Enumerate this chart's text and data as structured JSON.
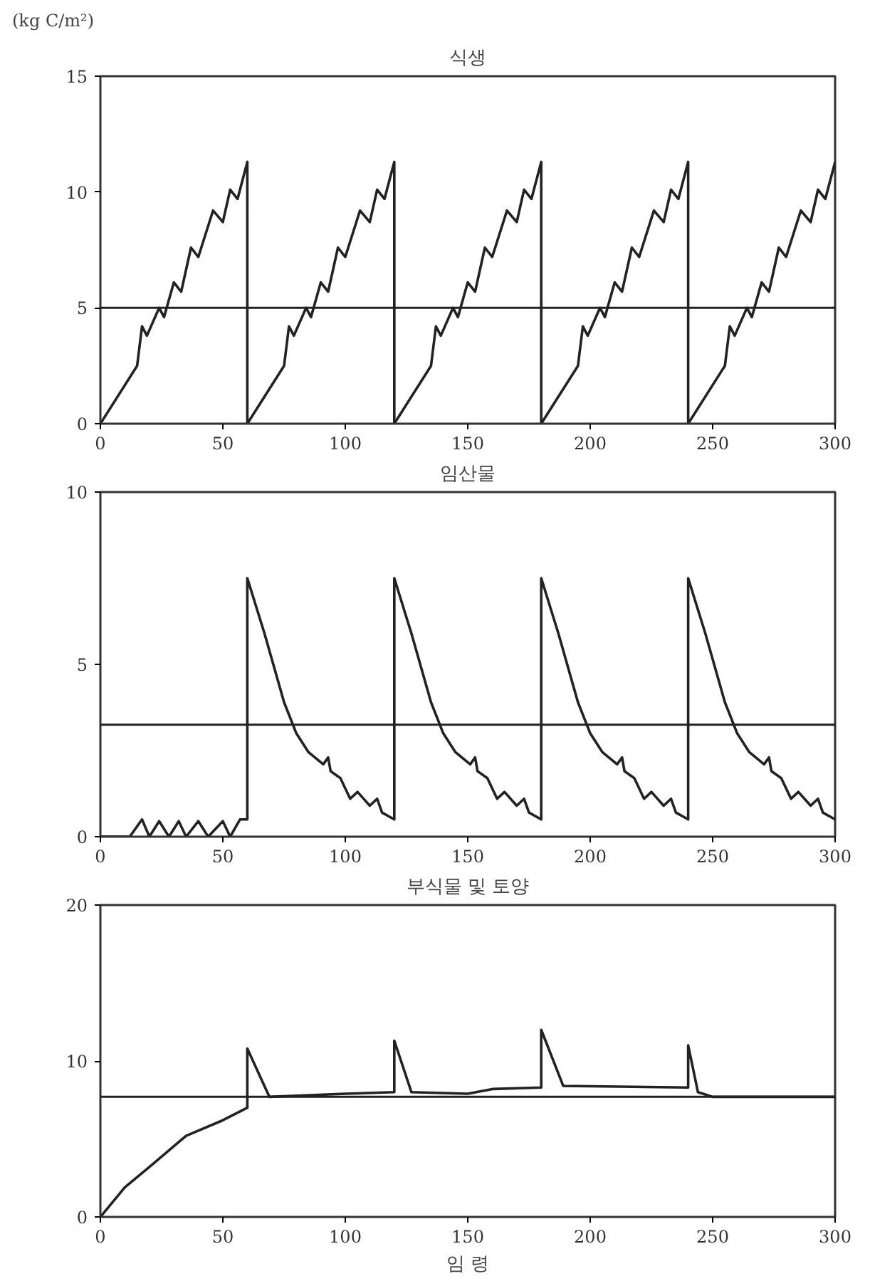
{
  "chart_data": [
    {
      "type": "line",
      "title": "식생",
      "ylabel": "(kg C/m²)",
      "xlim": [
        0,
        300
      ],
      "xticks": [
        0,
        50,
        100,
        150,
        200,
        250,
        300
      ],
      "ylim": [
        0,
        15
      ],
      "yticks": [
        0,
        5,
        10,
        15
      ],
      "grid": false,
      "marker": "none",
      "line_style": "solid",
      "series": [
        {
          "color": "#222222",
          "x": [
            0,
            15,
            17,
            19,
            24,
            26,
            30,
            33,
            37,
            40,
            46,
            50,
            53,
            56,
            60,
            60,
            75,
            77,
            79,
            84,
            86,
            90,
            93,
            97,
            100,
            106,
            110,
            113,
            116,
            120,
            120,
            135,
            137,
            139,
            144,
            146,
            150,
            153,
            157,
            160,
            166,
            170,
            173,
            176,
            180,
            180,
            195,
            197,
            199,
            204,
            206,
            210,
            213,
            217,
            220,
            226,
            230,
            233,
            236,
            240,
            240,
            255,
            257,
            259,
            264,
            266,
            270,
            273,
            277,
            280,
            286,
            290,
            293,
            296,
            300
          ],
          "values": [
            0,
            2.5,
            4.2,
            3.8,
            5.0,
            4.6,
            6.1,
            5.7,
            7.6,
            7.2,
            9.2,
            8.7,
            10.1,
            9.7,
            11.3,
            0,
            2.5,
            4.2,
            3.8,
            5.0,
            4.6,
            6.1,
            5.7,
            7.6,
            7.2,
            9.2,
            8.7,
            10.1,
            9.7,
            11.3,
            0,
            2.5,
            4.2,
            3.8,
            5.0,
            4.6,
            6.1,
            5.7,
            7.6,
            7.2,
            9.2,
            8.7,
            10.1,
            9.7,
            11.3,
            0,
            2.5,
            4.2,
            3.8,
            5.0,
            4.6,
            6.1,
            5.7,
            7.6,
            7.2,
            9.2,
            8.7,
            10.1,
            9.7,
            11.3,
            0,
            2.5,
            4.2,
            3.8,
            5.0,
            4.6,
            6.1,
            5.7,
            7.6,
            7.2,
            9.2,
            8.7,
            10.1,
            9.7,
            11.3
          ]
        }
      ],
      "ref_lines": [
        {
          "axis": "y",
          "value": 5,
          "color": "#222222"
        }
      ]
    },
    {
      "type": "line",
      "title": "임산물",
      "xlim": [
        0,
        300
      ],
      "xticks": [
        0,
        50,
        100,
        150,
        200,
        250,
        300
      ],
      "ylim": [
        0,
        10
      ],
      "yticks": [
        0,
        5,
        10
      ],
      "grid": false,
      "marker": "none",
      "line_style": "solid",
      "series": [
        {
          "color": "#222222",
          "x": [
            0,
            12,
            17,
            20,
            24,
            28,
            32,
            35,
            40,
            44,
            50,
            53,
            57,
            60,
            60,
            67,
            75,
            80,
            85,
            91,
            93,
            94,
            98,
            102,
            105,
            110,
            113,
            115,
            120,
            120,
            127,
            135,
            140,
            145,
            151,
            153,
            154,
            158,
            162,
            165,
            170,
            173,
            175,
            180,
            180,
            187,
            195,
            200,
            205,
            211,
            213,
            214,
            218,
            222,
            225,
            230,
            233,
            235,
            240,
            240,
            247,
            255,
            260,
            265,
            271,
            273,
            274,
            278,
            282,
            285,
            290,
            293,
            295,
            300
          ],
          "values": [
            0,
            0,
            0.5,
            0,
            0.45,
            0,
            0.45,
            0,
            0.45,
            0,
            0.45,
            0,
            0.5,
            0.5,
            7.5,
            5.9,
            3.9,
            3.0,
            2.45,
            2.1,
            2.3,
            1.9,
            1.7,
            1.1,
            1.3,
            0.9,
            1.1,
            0.7,
            0.5,
            7.5,
            5.9,
            3.9,
            3.0,
            2.45,
            2.1,
            2.3,
            1.9,
            1.7,
            1.1,
            1.3,
            0.9,
            1.1,
            0.7,
            0.5,
            7.5,
            5.9,
            3.9,
            3.0,
            2.45,
            2.1,
            2.3,
            1.9,
            1.7,
            1.1,
            1.3,
            0.9,
            1.1,
            0.7,
            0.5,
            7.5,
            5.9,
            3.9,
            3.0,
            2.45,
            2.1,
            2.3,
            1.9,
            1.7,
            1.1,
            1.3,
            0.9,
            1.1,
            0.7,
            0.5
          ]
        }
      ],
      "ref_lines": [
        {
          "axis": "y",
          "value": 3.25,
          "color": "#222222"
        }
      ]
    },
    {
      "type": "line",
      "title": "부식물 및 토양",
      "xlabel": "임 령",
      "xlim": [
        0,
        300
      ],
      "xticks": [
        0,
        50,
        100,
        150,
        200,
        250,
        300
      ],
      "ylim": [
        0,
        20
      ],
      "yticks": [
        0,
        10,
        20
      ],
      "grid": false,
      "marker": "none",
      "line_style": "solid",
      "series": [
        {
          "color": "#222222",
          "x": [
            0,
            10,
            20,
            35,
            50,
            60,
            60,
            69,
            100,
            120,
            120,
            127,
            150,
            160,
            180,
            180,
            189,
            240,
            240,
            244,
            250,
            300
          ],
          "values": [
            0,
            1.9,
            3.2,
            5.2,
            6.2,
            7.0,
            10.8,
            7.7,
            7.9,
            8.0,
            11.3,
            8.0,
            7.9,
            8.2,
            8.3,
            12.0,
            8.4,
            8.3,
            11.0,
            8.0,
            7.7,
            7.7
          ]
        }
      ],
      "ref_lines": [
        {
          "axis": "y",
          "value": 7.7,
          "color": "#222222"
        }
      ]
    }
  ]
}
